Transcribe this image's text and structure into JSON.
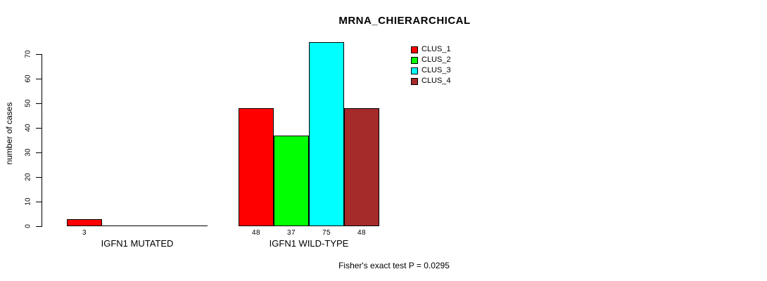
{
  "chart_data": {
    "type": "bar",
    "title": "MRNA_CHIERARCHICAL",
    "ylabel": "number of cases",
    "xlabel": "",
    "ylim": [
      0,
      70
    ],
    "yticks": [
      0,
      10,
      20,
      30,
      40,
      50,
      60,
      70
    ],
    "categories": [
      "IGFN1 MUTATED",
      "IGFN1 WILD-TYPE"
    ],
    "series": [
      {
        "name": "CLUS_1",
        "color": "#FF0000",
        "values": [
          3,
          48
        ]
      },
      {
        "name": "CLUS_2",
        "color": "#00FF00",
        "values": [
          0,
          37
        ]
      },
      {
        "name": "CLUS_3",
        "color": "#00FFFF",
        "values": [
          0,
          75
        ]
      },
      {
        "name": "CLUS_4",
        "color": "#A52A2A",
        "values": [
          0,
          48
        ]
      }
    ],
    "bar_value_labels": {
      "IGFN1 MUTATED": [
        3
      ],
      "IGFN1 WILD-TYPE": [
        48,
        37,
        75,
        48
      ]
    },
    "annotation": "Fisher's exact test P = 0.0295",
    "legend_position": "top-right",
    "legend_entries": [
      "CLUS_1",
      "CLUS_2",
      "CLUS_3",
      "CLUS_4"
    ],
    "grid": false,
    "background_color": "#FFFFFF",
    "axis_color": "#000000"
  }
}
